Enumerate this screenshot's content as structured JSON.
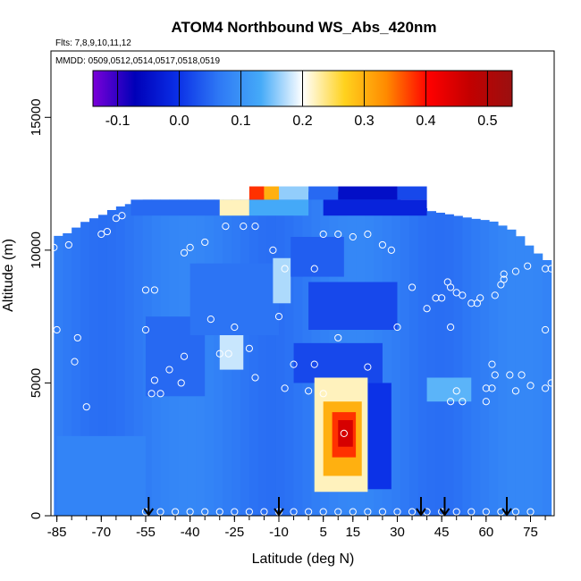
{
  "chart_data": {
    "type": "heatmap",
    "title": "ATOM4 Northbound WS_Abs_420nm",
    "flights_note": "Flts: 7,8,9,10,11,12",
    "dates_note": "MMDD: 0509,0512,0514,0517,0518,0519",
    "xlabel": "Latitude (deg N)",
    "ylabel": "Altitude (m)",
    "xlim": [
      -87,
      83
    ],
    "ylim": [
      0,
      17500
    ],
    "xticks": [
      -85,
      -70,
      -55,
      -40,
      -25,
      -10,
      5,
      15,
      30,
      45,
      60,
      75
    ],
    "yticks": [
      0,
      5000,
      10000,
      15000
    ],
    "colorbar": {
      "range": [
        -0.14,
        0.54
      ],
      "ticks": [
        -0.1,
        0.0,
        0.1,
        0.2,
        0.3,
        0.4,
        0.5
      ],
      "tick_labels": [
        "-0.1",
        "0.0",
        "0.1",
        "0.2",
        "0.3",
        "0.4",
        "0.5"
      ],
      "colors": [
        "#7a00d8",
        "#0000b8",
        "#0a2ee6",
        "#2e78f5",
        "#45aaf8",
        "#ffffff",
        "#ffd21e",
        "#ff8a00",
        "#ff0000",
        "#c20000",
        "#9a1010"
      ]
    },
    "background_value": 0.07,
    "altitude_envelope": [
      {
        "lat": -86,
        "top": 10500
      },
      {
        "lat": -82,
        "top": 10600
      },
      {
        "lat": -75,
        "top": 11100
      },
      {
        "lat": -70,
        "top": 11300
      },
      {
        "lat": -65,
        "top": 11600
      },
      {
        "lat": -55,
        "top": 11900
      },
      {
        "lat": -20,
        "top": 11900
      },
      {
        "lat": -12,
        "top": 12200
      },
      {
        "lat": 0,
        "top": 12200
      },
      {
        "lat": 20,
        "top": 12200
      },
      {
        "lat": 30,
        "top": 12000
      },
      {
        "lat": 40,
        "top": 11500
      },
      {
        "lat": 55,
        "top": 11200
      },
      {
        "lat": 62,
        "top": 11100
      },
      {
        "lat": 70,
        "top": 10700
      },
      {
        "lat": 76,
        "top": 10000
      },
      {
        "lat": 82,
        "top": 9500
      }
    ],
    "regions": [
      {
        "lat": [
          -85,
          -55
        ],
        "alt": [
          0,
          3000
        ],
        "value": 0.08
      },
      {
        "lat": [
          -55,
          -35
        ],
        "alt": [
          4500,
          7500
        ],
        "value": 0.05
      },
      {
        "lat": [
          -30,
          -22
        ],
        "alt": [
          5500,
          6800
        ],
        "value": 0.18
      },
      {
        "lat": [
          -40,
          -10
        ],
        "alt": [
          6800,
          9500
        ],
        "value": 0.06
      },
      {
        "lat": [
          -12,
          -6
        ],
        "alt": [
          8000,
          9700
        ],
        "value": 0.17
      },
      {
        "lat": [
          -6,
          12
        ],
        "alt": [
          9000,
          10500
        ],
        "value": 0.04
      },
      {
        "lat": [
          0,
          30
        ],
        "alt": [
          7000,
          8800
        ],
        "value": 0.02
      },
      {
        "lat": [
          -5,
          25
        ],
        "alt": [
          5000,
          6500
        ],
        "value": 0.02
      },
      {
        "lat": [
          20,
          28
        ],
        "alt": [
          1000,
          5000
        ],
        "value": 0.0
      },
      {
        "lat": [
          -60,
          -30
        ],
        "alt": [
          11300,
          11900
        ],
        "value": 0.05
      },
      {
        "lat": [
          -30,
          -20
        ],
        "alt": [
          11300,
          11900
        ],
        "value": 0.22
      },
      {
        "lat": [
          -20,
          0
        ],
        "alt": [
          11300,
          11900
        ],
        "value": 0.13
      },
      {
        "lat": [
          5,
          40
        ],
        "alt": [
          11300,
          11900
        ],
        "value": -0.02
      },
      {
        "lat": [
          -20,
          -15
        ],
        "alt": [
          11900,
          12400
        ],
        "value": 0.38
      },
      {
        "lat": [
          -15,
          -10
        ],
        "alt": [
          11900,
          12400
        ],
        "value": 0.3
      },
      {
        "lat": [
          -10,
          0
        ],
        "alt": [
          11900,
          12400
        ],
        "value": 0.16
      },
      {
        "lat": [
          0,
          10
        ],
        "alt": [
          11900,
          12400
        ],
        "value": 0.05
      },
      {
        "lat": [
          10,
          30
        ],
        "alt": [
          11900,
          12400
        ],
        "value": -0.05
      },
      {
        "lat": [
          30,
          40
        ],
        "alt": [
          11900,
          12400
        ],
        "value": 0.02
      },
      {
        "lat": [
          40,
          55
        ],
        "alt": [
          4300,
          5200
        ],
        "value": 0.14
      },
      {
        "lat": [
          2,
          20
        ],
        "alt": [
          900,
          5200
        ],
        "value": 0.22
      },
      {
        "lat": [
          5,
          18
        ],
        "alt": [
          1500,
          4300
        ],
        "value": 0.3
      },
      {
        "lat": [
          8,
          16
        ],
        "alt": [
          2200,
          3900
        ],
        "value": 0.38
      },
      {
        "lat": [
          10,
          15
        ],
        "alt": [
          2600,
          3600
        ],
        "value": 0.45
      }
    ],
    "observation_points": [
      [
        -86,
        10100
      ],
      [
        -85,
        7000
      ],
      [
        -81,
        10200
      ],
      [
        -79,
        5800
      ],
      [
        -78,
        6700
      ],
      [
        -75,
        4100
      ],
      [
        -70,
        10600
      ],
      [
        -68,
        10700
      ],
      [
        -65,
        11200
      ],
      [
        -63,
        11300
      ],
      [
        -55,
        8500
      ],
      [
        -52,
        8500
      ],
      [
        -55,
        7000
      ],
      [
        -52,
        5100
      ],
      [
        -53,
        4600
      ],
      [
        -50,
        4600
      ],
      [
        -47,
        5500
      ],
      [
        -43,
        5000
      ],
      [
        -42,
        6000
      ],
      [
        -42,
        9900
      ],
      [
        -40,
        10100
      ],
      [
        -35,
        10300
      ],
      [
        -33,
        7400
      ],
      [
        -30,
        6100
      ],
      [
        -27,
        6100
      ],
      [
        -25,
        7100
      ],
      [
        -22,
        10900
      ],
      [
        -28,
        10900
      ],
      [
        -20,
        6300
      ],
      [
        -18,
        5200
      ],
      [
        -18,
        10900
      ],
      [
        -12,
        10000
      ],
      [
        -10,
        7500
      ],
      [
        -8,
        9300
      ],
      [
        -8,
        4800
      ],
      [
        -5,
        5700
      ],
      [
        0,
        4700
      ],
      [
        2,
        5700
      ],
      [
        2,
        9300
      ],
      [
        5,
        10600
      ],
      [
        5,
        4600
      ],
      [
        10,
        10600
      ],
      [
        10,
        6700
      ],
      [
        12,
        3100
      ],
      [
        15,
        10500
      ],
      [
        20,
        10600
      ],
      [
        20,
        5600
      ],
      [
        25,
        10200
      ],
      [
        28,
        10000
      ],
      [
        30,
        7100
      ],
      [
        35,
        8600
      ],
      [
        40,
        7800
      ],
      [
        43,
        8200
      ],
      [
        45,
        8200
      ],
      [
        47,
        8800
      ],
      [
        48,
        8600
      ],
      [
        48,
        7100
      ],
      [
        50,
        8400
      ],
      [
        52,
        8300
      ],
      [
        50,
        4700
      ],
      [
        52,
        4300
      ],
      [
        48,
        4300
      ],
      [
        55,
        8000
      ],
      [
        57,
        8000
      ],
      [
        58,
        8200
      ],
      [
        60,
        4800
      ],
      [
        62,
        4800
      ],
      [
        60,
        4300
      ],
      [
        63,
        5300
      ],
      [
        62,
        5700
      ],
      [
        63,
        8300
      ],
      [
        65,
        8700
      ],
      [
        66,
        8900
      ],
      [
        66,
        9100
      ],
      [
        68,
        5300
      ],
      [
        70,
        4700
      ],
      [
        72,
        5300
      ],
      [
        75,
        4900
      ],
      [
        75,
        10800
      ],
      [
        75,
        10600
      ],
      [
        76,
        10400
      ],
      [
        80,
        7000
      ],
      [
        80,
        9300
      ],
      [
        82,
        9300
      ],
      [
        82,
        5000
      ],
      [
        80,
        4800
      ],
      [
        74,
        9400
      ],
      [
        70,
        9200
      ]
    ],
    "surface_points_lat": [
      -55,
      -50,
      -45,
      -40,
      -35,
      -30,
      -25,
      -20,
      -15,
      -10,
      -5,
      0,
      5,
      10,
      15,
      20,
      25,
      30,
      35,
      40,
      45,
      50,
      55,
      60,
      65,
      70,
      75
    ],
    "sampling_arrows_lat": [
      -54,
      -10,
      38,
      46,
      67
    ]
  }
}
